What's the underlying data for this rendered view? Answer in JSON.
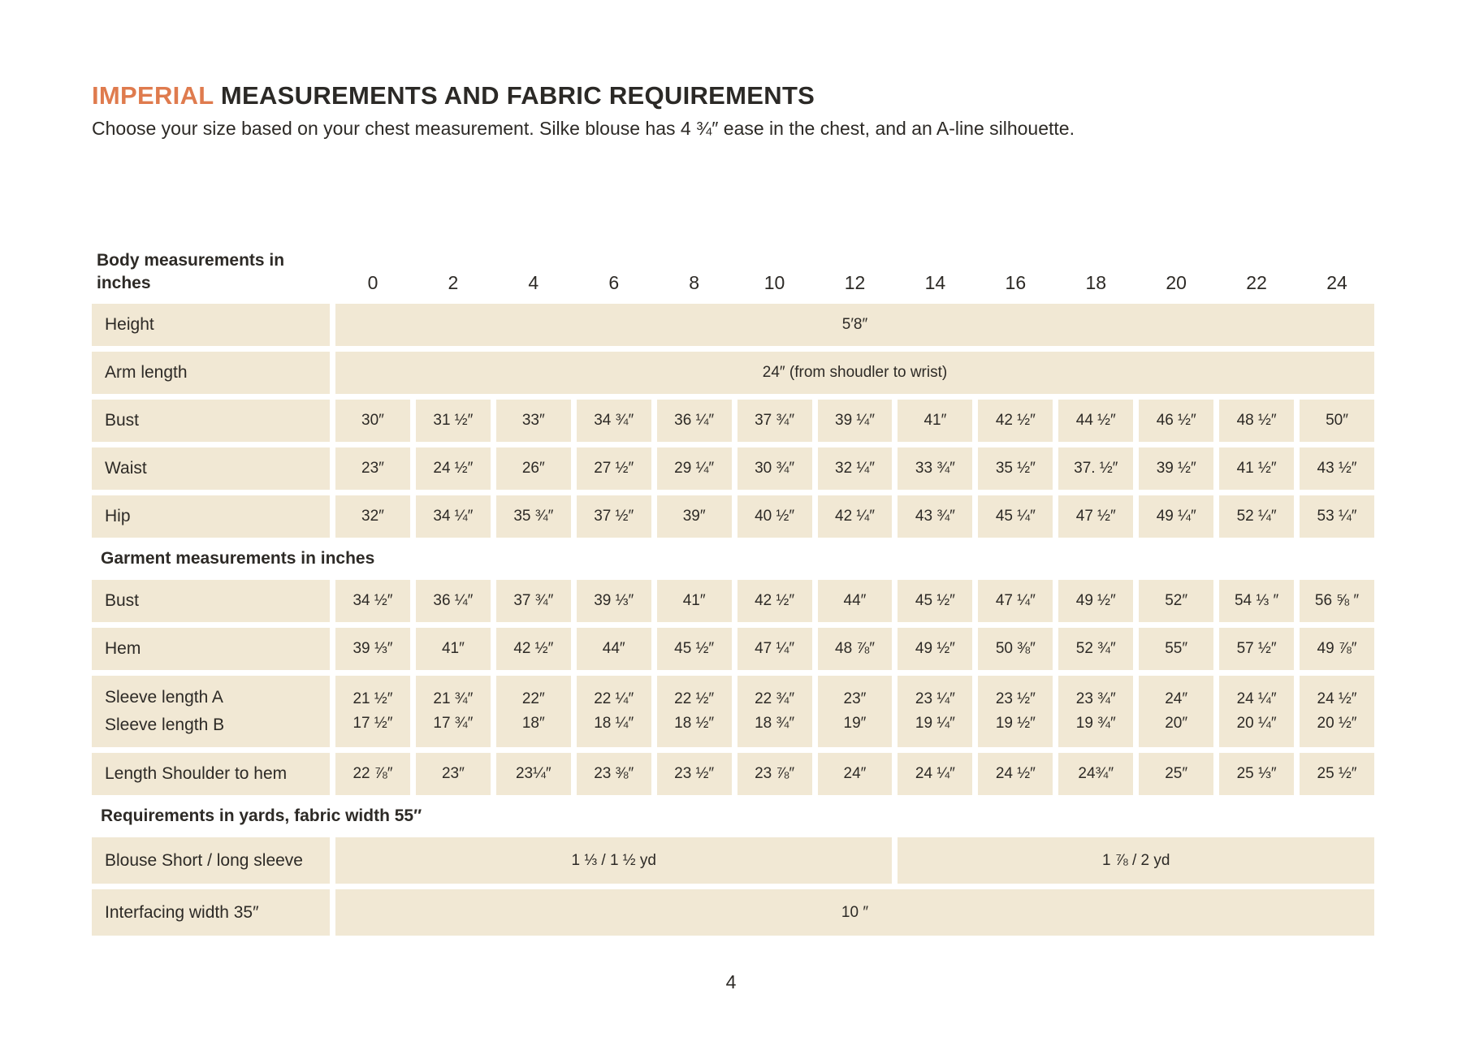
{
  "page": {
    "title_accent": "IMPERIAL",
    "title_rest": " MEASUREMENTS AND FABRIC REQUIREMENTS",
    "subtitle": "Choose your size based on your chest measurement. Silke blouse has 4 ¾″ ease in the chest, and an A-line silhouette.",
    "page_number": "4"
  },
  "colors": {
    "accent_orange": "#df7b4e",
    "cell_beige": "#f1e8d4",
    "text_dark": "#2d2a26"
  },
  "table": {
    "rows": [
      {
        "type": "header",
        "label": "Body measurements in inches",
        "sizes": [
          "0",
          "2",
          "4",
          "6",
          "8",
          "10",
          "12",
          "14",
          "16",
          "18",
          "20",
          "22",
          "24"
        ]
      },
      {
        "type": "span",
        "label": "Height",
        "spans": [
          {
            "cols": 13,
            "value": "5′8″"
          }
        ]
      },
      {
        "type": "span",
        "label": "Arm length",
        "spans": [
          {
            "cols": 13,
            "value": "24″ (from shoudler to wrist)"
          }
        ]
      },
      {
        "type": "cells",
        "label": "Bust",
        "values": [
          "30″",
          "31 ½″",
          "33″",
          "34 ¾″",
          "36 ¼″",
          "37 ¾″",
          "39 ¼″",
          "41″",
          "42 ½″",
          "44 ½″",
          "46 ½″",
          "48 ½″",
          "50″"
        ]
      },
      {
        "type": "cells",
        "label": "Waist",
        "values": [
          "23″",
          "24 ½″",
          "26″",
          "27 ½″",
          "29 ¼″",
          "30 ¾″",
          "32 ¼″",
          "33 ¾″",
          "35 ½″",
          "37. ½″",
          "39 ½″",
          "41 ½″",
          "43 ½″"
        ]
      },
      {
        "type": "cells",
        "label": "Hip",
        "values": [
          "32″",
          "34 ¼″",
          "35 ¾″",
          "37 ½″",
          "39″",
          "40 ½″",
          "42 ¼″",
          "43 ¾″",
          "45 ¼″",
          "47 ½″",
          "49 ¼″",
          "52 ¼″",
          "53 ¼″"
        ]
      },
      {
        "type": "section",
        "label": "Garment measurements in inches"
      },
      {
        "type": "cells",
        "label": "Bust",
        "values": [
          "34 ½″",
          "36 ¼″",
          "37 ¾″",
          "39 ⅓″",
          "41″",
          "42 ½″",
          "44″",
          "45 ½″",
          "47 ¼″",
          "49 ½″",
          "52″",
          "54 ⅓ ″",
          "56 ⅝ ″"
        ]
      },
      {
        "type": "cells",
        "label": "Hem",
        "values": [
          "39 ⅓″",
          "41″",
          "42 ½″",
          "44″",
          "45 ½″",
          "47 ¼″",
          "48 ⅞″",
          "49 ½″",
          "50 ⅜″",
          "52 ¾″",
          "55″",
          "57 ½″",
          "49 ⅞″"
        ]
      },
      {
        "type": "cells2",
        "label_lines": [
          "Sleeve length  A",
          "Sleeve length B"
        ],
        "values_top": [
          "21 ½″",
          "21 ¾″",
          "22″",
          "22 ¼″",
          "22 ½″",
          "22 ¾″",
          "23″",
          "23 ¼″",
          "23 ½″",
          "23 ¾″",
          "24″",
          "24 ¼″",
          "24 ½″"
        ],
        "values_bottom": [
          "17 ½″",
          "17 ¾″",
          "18″",
          "18 ¼″",
          "18 ½″",
          "18 ¾″",
          "19″",
          "19 ¼″",
          "19 ½″",
          "19 ¾″",
          "20″",
          "20 ¼″",
          "20 ½″"
        ]
      },
      {
        "type": "cells",
        "label": "Length Shoulder to hem",
        "values": [
          "22 ⅞″",
          "23″",
          "23¼″",
          "23 ⅜″",
          "23 ½″",
          "23 ⅞″",
          "24″",
          "24 ¼″",
          "24 ½″",
          "24¾″",
          "25″",
          "25 ⅓″",
          "25 ½″"
        ]
      },
      {
        "type": "section",
        "label": "Requirements in yards, fabric width 55″"
      },
      {
        "type": "span",
        "label": "Blouse Short / long sleeve",
        "spans": [
          {
            "cols": 7,
            "value": "1 ⅓ / 1 ½ yd"
          },
          {
            "cols": 6,
            "value": "1 ⅞ / 2  yd"
          }
        ]
      },
      {
        "type": "span",
        "label": "Interfacing width 35″",
        "spans": [
          {
            "cols": 13,
            "value": "10 ″"
          }
        ]
      }
    ]
  }
}
